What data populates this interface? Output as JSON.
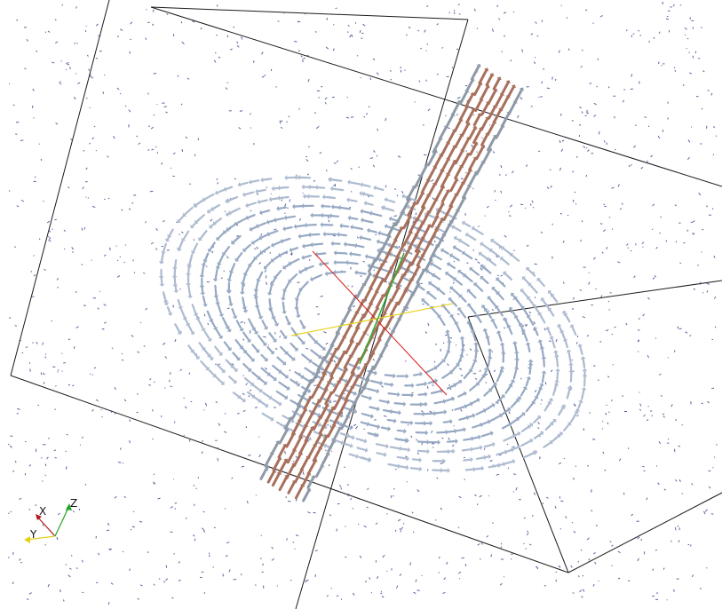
{
  "scene": {
    "background": "#ffffff",
    "box_edge_color": "#1a1a1a",
    "dot_color": "#3c4a8c",
    "vortex_arrow_color": "#97a9c3",
    "column_arrow_color": "#a8705c",
    "axis_x_color": "#d81a1a",
    "axis_y_color": "#e8d21c",
    "axis_z_color": "#2db12d"
  },
  "orientation_widget": {
    "x_label": "X",
    "y_label": "Y",
    "z_label": "Z",
    "x_color": "#b01818",
    "y_color": "#e3cf1a",
    "z_color": "#25a525"
  }
}
